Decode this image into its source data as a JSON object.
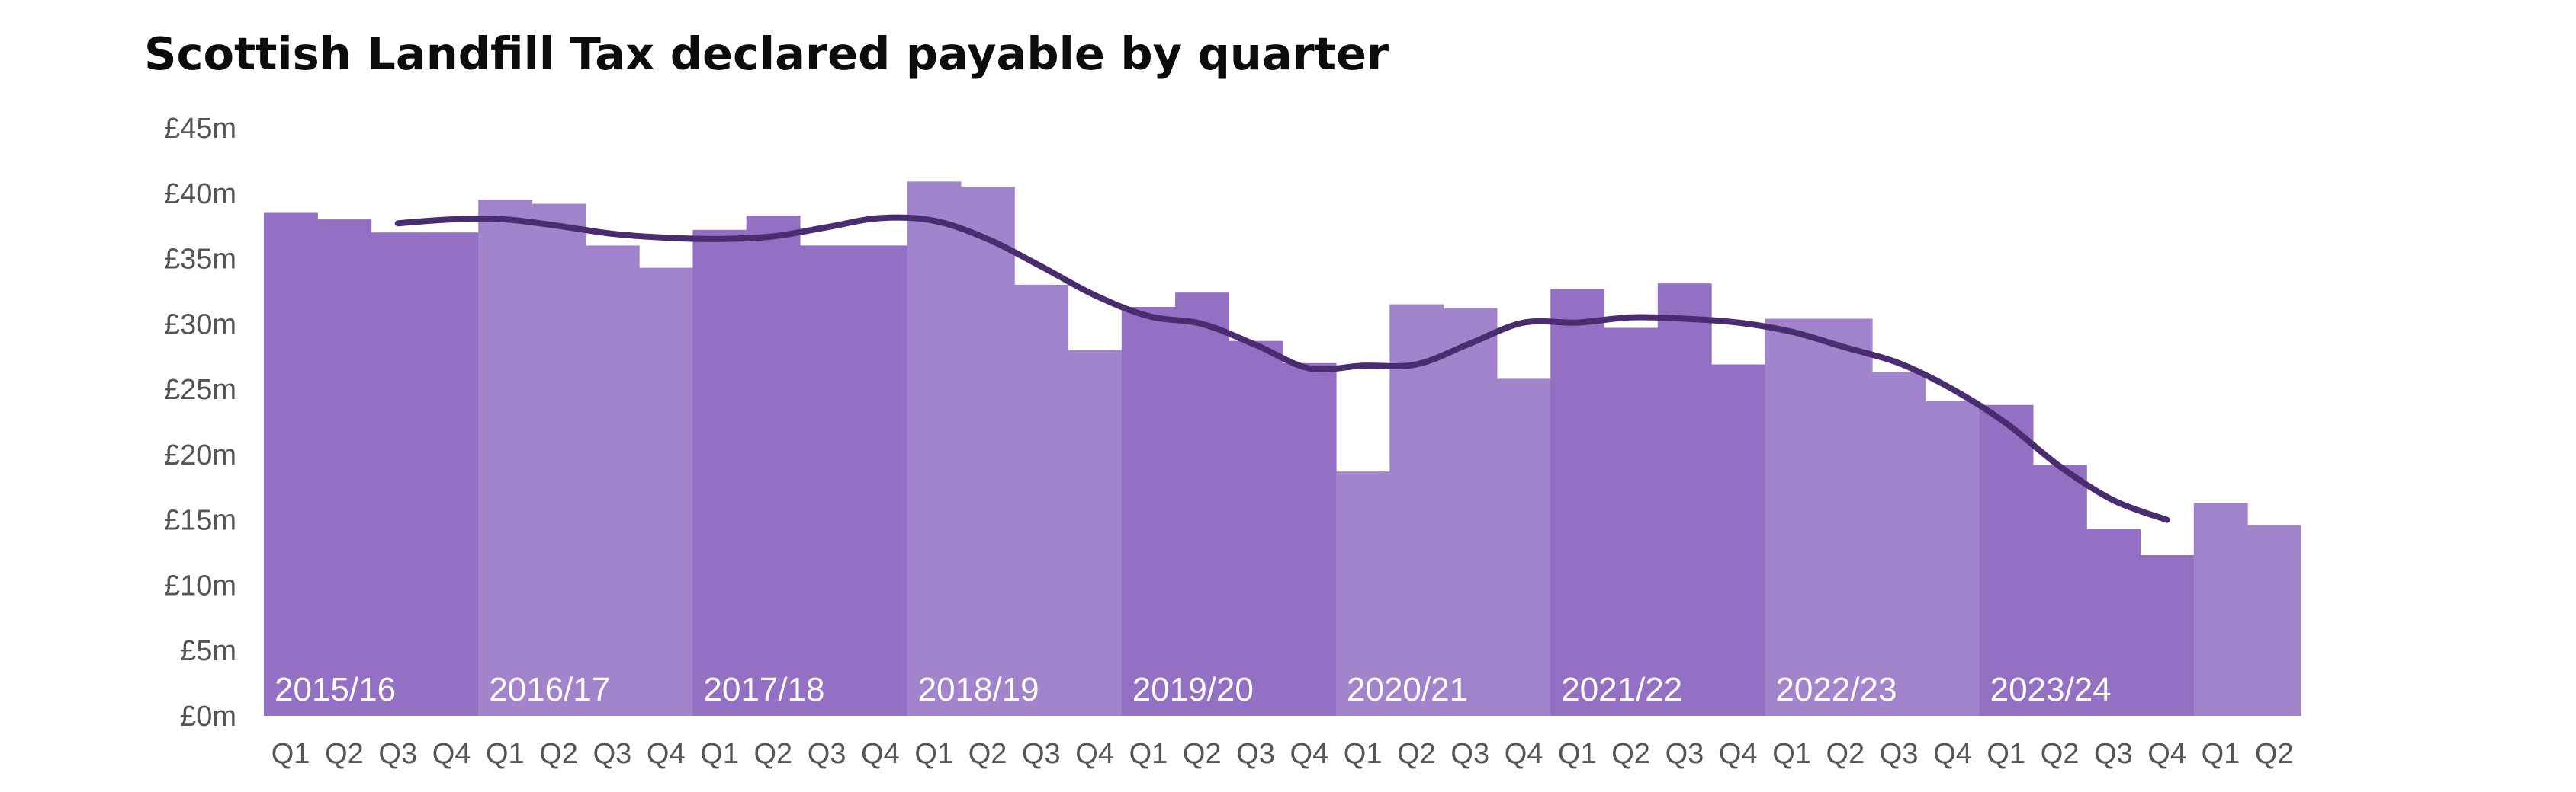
{
  "chart_data": {
    "type": "bar",
    "title": "Scottish Landfill Tax declared payable by quarter",
    "xlabel": "",
    "ylabel": "",
    "ylim": [
      0,
      45
    ],
    "yticks": [
      "£0m",
      "£5m",
      "£10m",
      "£15m",
      "£20m",
      "£25m",
      "£30m",
      "£35m",
      "£40m",
      "£45m"
    ],
    "grid": false,
    "legend": "none",
    "colors": {
      "dark_band": "#9370c4",
      "light_band": "#a184cb",
      "line": "#4a2c70",
      "year_label": "#ffffff"
    },
    "categories": [
      "Q1",
      "Q2",
      "Q3",
      "Q4",
      "Q1",
      "Q2",
      "Q3",
      "Q4",
      "Q1",
      "Q2",
      "Q3",
      "Q4",
      "Q1",
      "Q2",
      "Q3",
      "Q4",
      "Q1",
      "Q2",
      "Q3",
      "Q4",
      "Q1",
      "Q2",
      "Q3",
      "Q4",
      "Q1",
      "Q2",
      "Q3",
      "Q4",
      "Q1",
      "Q2",
      "Q3",
      "Q4",
      "Q1",
      "Q2",
      "Q3",
      "Q4",
      "Q1",
      "Q2"
    ],
    "years": [
      "2015/16",
      "2016/17",
      "2017/18",
      "2018/19",
      "2019/20",
      "2020/21",
      "2021/22",
      "2022/23",
      "2023/24"
    ],
    "series": [
      {
        "type": "bar",
        "values": [
          38.5,
          38.0,
          37.0,
          37.0,
          39.5,
          39.2,
          36.0,
          34.3,
          37.2,
          38.3,
          36.0,
          36.0,
          40.9,
          40.5,
          33.0,
          28.0,
          31.3,
          32.4,
          28.7,
          27.0,
          18.7,
          31.5,
          31.2,
          25.8,
          32.7,
          29.7,
          33.1,
          26.9,
          30.4,
          30.4,
          26.3,
          24.1,
          23.8,
          19.2,
          14.3,
          12.3,
          16.3,
          14.6
        ]
      },
      {
        "type": "line",
        "values": [
          null,
          null,
          37.7,
          38.0,
          38.0,
          37.5,
          36.9,
          36.6,
          36.5,
          36.7,
          37.4,
          38.1,
          37.9,
          36.5,
          34.4,
          32.2,
          30.6,
          30.0,
          28.4,
          26.6,
          26.8,
          26.9,
          28.5,
          30.1,
          30.1,
          30.5,
          30.4,
          30.1,
          29.4,
          28.2,
          27.0,
          25.0,
          22.4,
          19.1,
          16.5,
          15.0,
          null,
          null
        ]
      }
    ]
  }
}
